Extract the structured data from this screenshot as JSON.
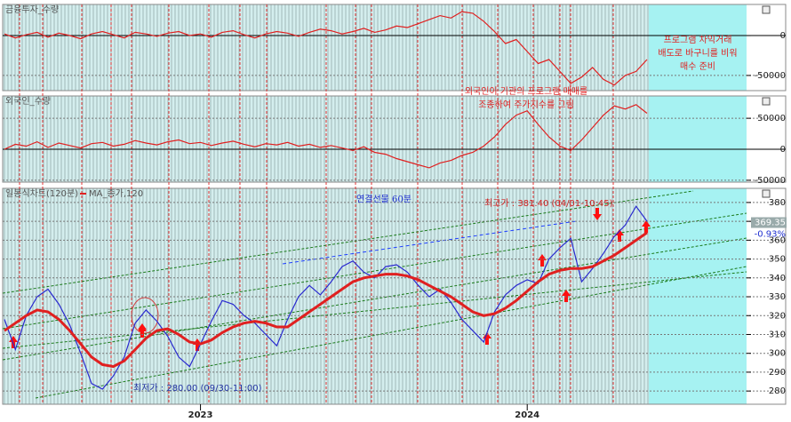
{
  "chart_data": [
    {
      "type": "line",
      "title": "금융투자_수량",
      "series": [
        {
          "name": "금융투자_수량",
          "color": "#e02020",
          "values": [
            2000,
            -3000,
            1000,
            4000,
            -2000,
            3000,
            0,
            -4000,
            2000,
            5000,
            1000,
            -3000,
            4000,
            2000,
            -1000,
            3000,
            5000,
            0,
            2000,
            -2000,
            4000,
            6000,
            1000,
            -3000,
            2000,
            5000,
            3000,
            -1000,
            4000,
            8000,
            6000,
            2000,
            5000,
            9000,
            4000,
            7000,
            12000,
            10000,
            15000,
            20000,
            25000,
            22000,
            30000,
            28000,
            18000,
            5000,
            -10000,
            -5000,
            -20000,
            -35000,
            -30000,
            -45000,
            -60000,
            -52000,
            -40000,
            -55000,
            -62000,
            -50000,
            -45000,
            -30000
          ]
        }
      ],
      "xlim": [
        0,
        59
      ],
      "ylim": [
        -69000,
        39000
      ],
      "yticks": [
        0,
        -50000
      ],
      "annotations": [
        "프로그램 차익거래",
        "배도로 바구니를 비워",
        "매수 준비"
      ]
    },
    {
      "type": "line",
      "title": "외국인_수량",
      "series": [
        {
          "name": "외국인_수량",
          "color": "#e02020",
          "values": [
            0,
            8000,
            5000,
            12000,
            3000,
            10000,
            6000,
            2000,
            9000,
            11000,
            5000,
            8000,
            14000,
            10000,
            7000,
            12000,
            15000,
            9000,
            11000,
            6000,
            10000,
            13000,
            8000,
            4000,
            9000,
            7000,
            11000,
            5000,
            8000,
            3000,
            6000,
            2000,
            -2000,
            4000,
            -5000,
            -8000,
            -15000,
            -20000,
            -25000,
            -30000,
            -22000,
            -18000,
            -10000,
            -5000,
            5000,
            20000,
            40000,
            55000,
            62000,
            40000,
            20000,
            5000,
            -2000,
            15000,
            35000,
            55000,
            70000,
            65000,
            72000,
            58000
          ]
        }
      ],
      "xlim": [
        0,
        59
      ],
      "ylim": [
        -53000,
        86000
      ],
      "yticks": [
        50000,
        0,
        -50000
      ],
      "annotations": [
        "외국인이 기관의 프로그램 매매를",
        "조종하여 주가지수를 그림"
      ]
    },
    {
      "type": "line",
      "title": "일봉식차트(120분)",
      "subtitle": "연결선물 60분",
      "series": [
        {
          "name": "일봉식차트(120분)",
          "color": "#2a2ad0",
          "values": [
            318,
            302,
            320,
            330,
            334,
            326,
            315,
            300,
            284,
            281,
            288,
            298,
            316,
            323,
            317,
            309,
            298,
            293,
            305,
            317,
            328,
            326,
            320,
            316,
            310,
            304,
            318,
            330,
            336,
            331,
            338,
            346,
            349,
            343,
            340,
            346,
            347,
            343,
            336,
            330,
            334,
            327,
            318,
            312,
            306,
            322,
            331,
            336,
            339,
            337,
            350,
            356,
            361,
            338,
            345,
            353,
            362,
            368,
            378,
            370
          ]
        },
        {
          "name": "MA_종가,120",
          "color": "#e02020",
          "values": [
            312,
            316,
            320,
            323,
            322,
            318,
            312,
            305,
            298,
            294,
            293,
            296,
            302,
            308,
            312,
            313,
            310,
            306,
            305,
            307,
            311,
            314,
            316,
            317,
            316,
            314,
            314,
            318,
            322,
            326,
            330,
            334,
            338,
            340,
            341,
            342,
            342,
            341,
            339,
            336,
            333,
            330,
            326,
            322,
            320,
            321,
            324,
            328,
            333,
            338,
            342,
            344,
            345,
            345,
            346,
            349,
            352,
            356,
            360,
            364
          ]
        }
      ],
      "xlim": [
        0,
        59
      ],
      "xticks": [
        {
          "value": 18,
          "label": "2023"
        },
        {
          "value": 48,
          "label": "2024"
        }
      ],
      "ylim": [
        273,
        387.5
      ],
      "yticks": [
        280,
        290,
        300,
        310,
        320,
        330,
        340,
        350,
        360,
        370,
        380
      ],
      "last_price": 369.35,
      "change": {
        "value": -0.93,
        "label": "-0.93%"
      },
      "annotations": [
        "최고가 : 381.40 (04/01-10:45)",
        "최저가 : 280.00 (09/30-11:00)"
      ]
    }
  ]
}
